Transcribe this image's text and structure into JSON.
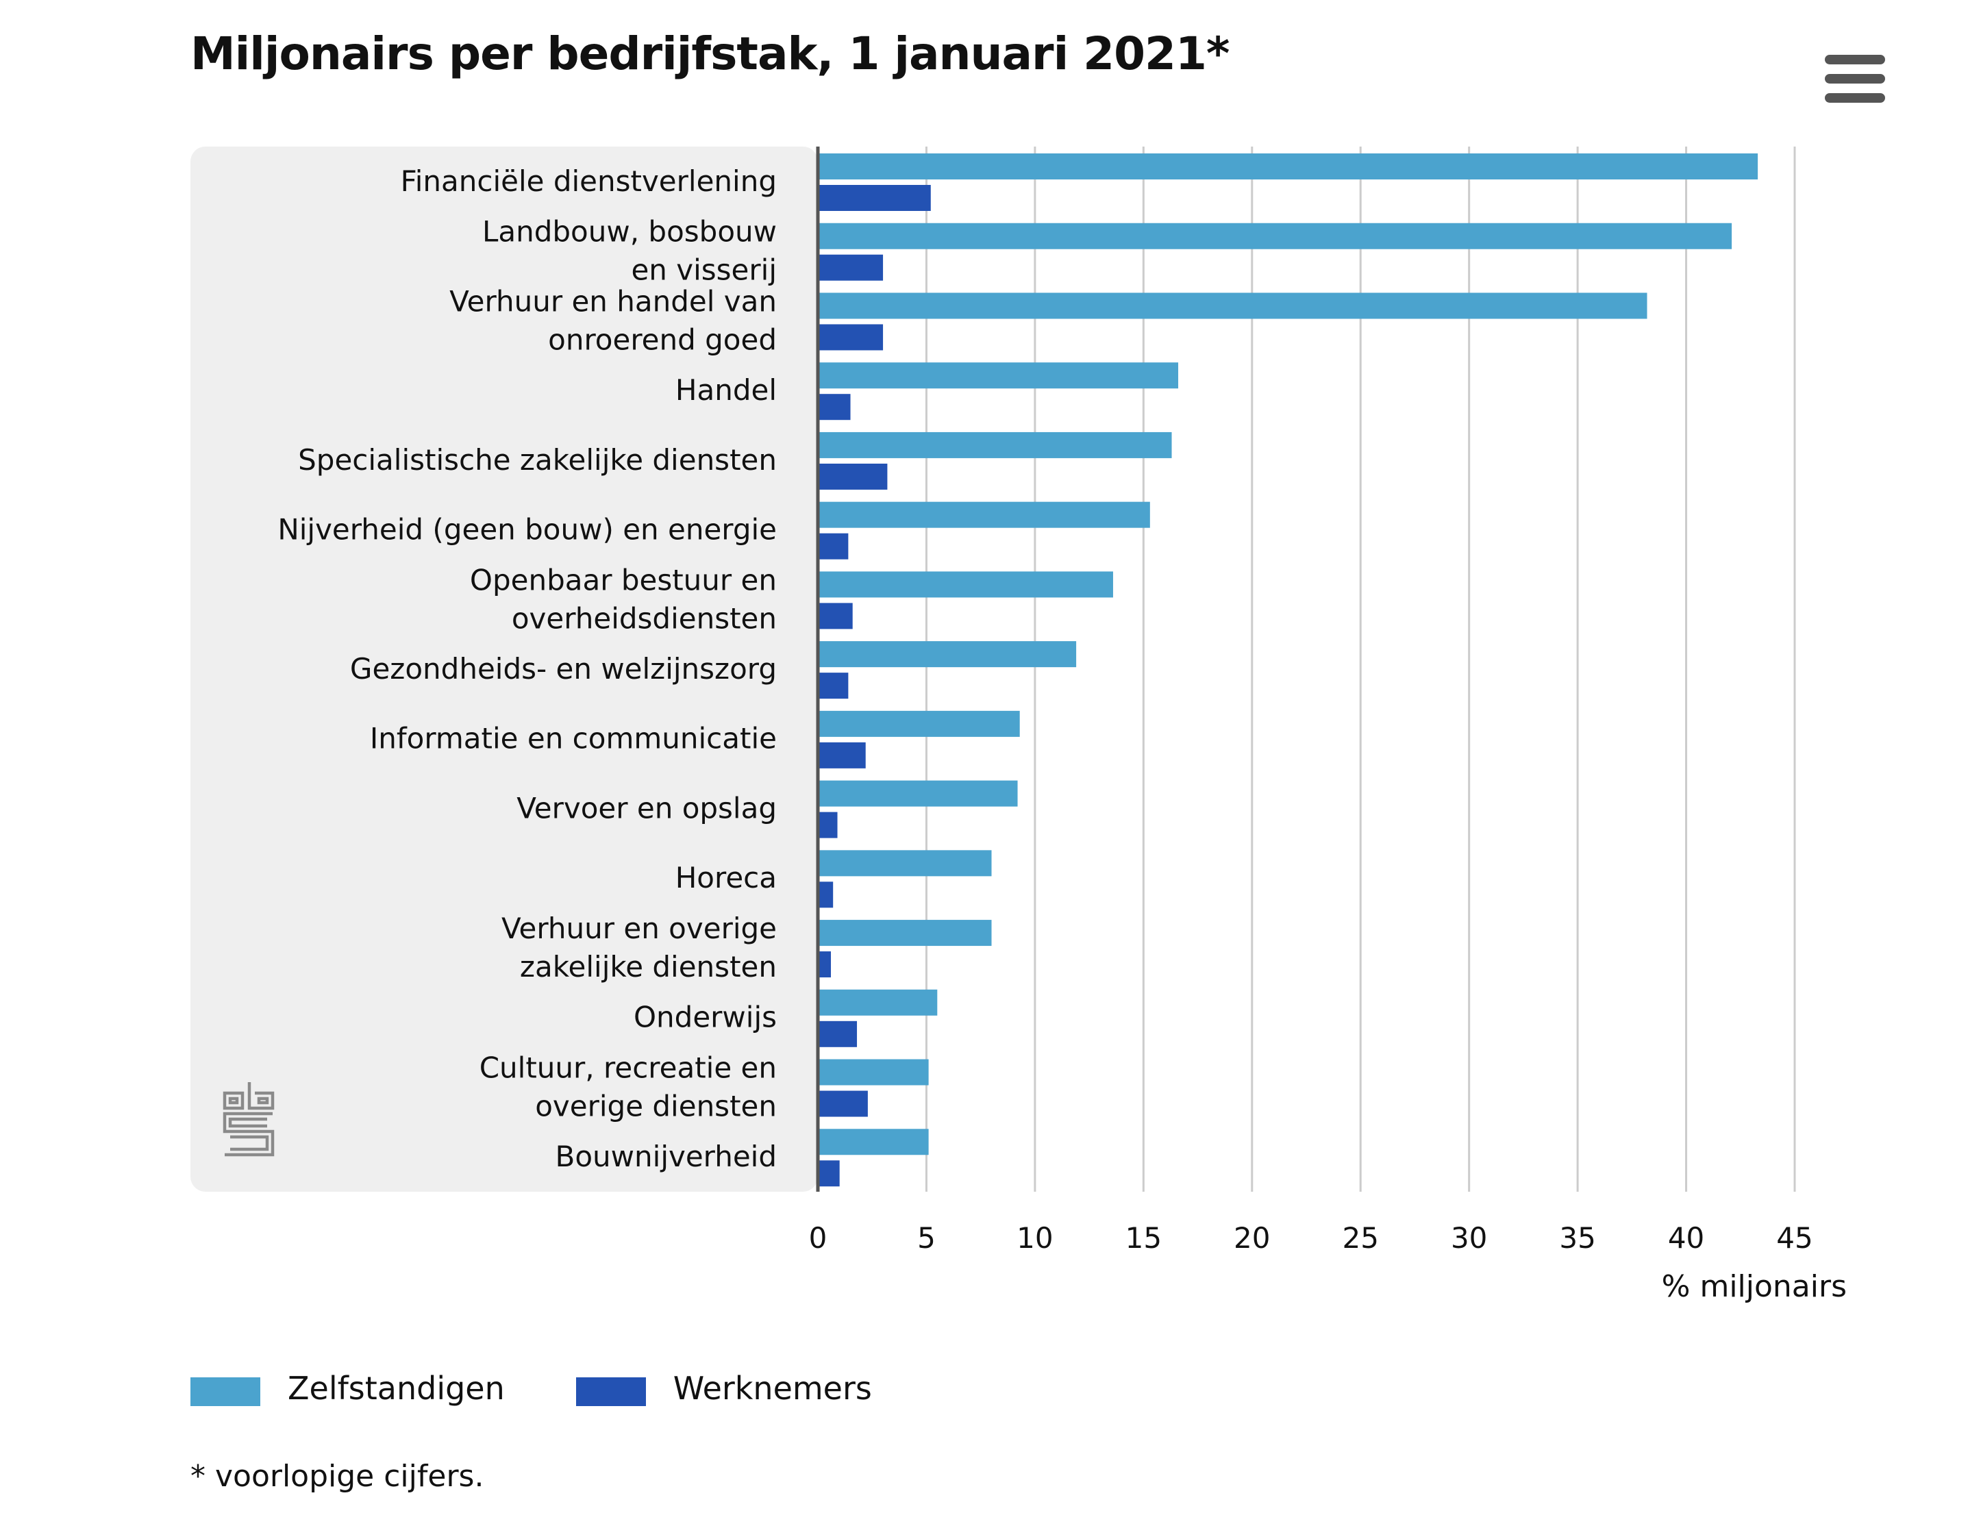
{
  "colors": {
    "zelfstandigen": "#4ba3ce",
    "werknemers": "#2352b3",
    "panel_background": "#efefef",
    "gridline": "#cccccc",
    "axis_line": "#555555",
    "logo": "#8a8a8a"
  },
  "menu": {
    "icon": "hamburger-menu-icon"
  },
  "logo": {
    "icon": "cbs-logo-icon",
    "text": "cbs"
  },
  "footnote": "* voorlopige cijfers.",
  "chart_data": {
    "type": "bar",
    "orientation": "horizontal",
    "title": "Miljonairs per bedrijfstak, 1 januari 2021*",
    "xlabel": "% miljonairs",
    "ylabel": "",
    "xlim": [
      0,
      45
    ],
    "xticks": [
      "0",
      "5",
      "10",
      "15",
      "20",
      "25",
      "30",
      "35",
      "40",
      "45"
    ],
    "grid": true,
    "legend_position": "bottom-left",
    "categories": [
      [
        "Financiële dienstverlening"
      ],
      [
        "Landbouw, bosbouw",
        "en visserij"
      ],
      [
        "Verhuur en handel van",
        "onroerend goed"
      ],
      [
        "Handel"
      ],
      [
        "Specialistische zakelijke diensten"
      ],
      [
        "Nijverheid (geen bouw) en energie"
      ],
      [
        "Openbaar bestuur en",
        "overheidsdiensten"
      ],
      [
        "Gezondheids- en welzijnszorg"
      ],
      [
        "Informatie en communicatie"
      ],
      [
        "Vervoer en opslag"
      ],
      [
        "Horeca"
      ],
      [
        "Verhuur en overige",
        "zakelijke diensten"
      ],
      [
        "Onderwijs"
      ],
      [
        "Cultuur, recreatie en",
        "overige diensten"
      ],
      [
        "Bouwnijverheid"
      ]
    ],
    "series": [
      {
        "name": "Zelfstandigen",
        "values": [
          43.3,
          42.1,
          38.2,
          16.6,
          16.3,
          15.3,
          13.6,
          11.9,
          9.3,
          9.2,
          8.0,
          8.0,
          5.5,
          5.1,
          5.1
        ]
      },
      {
        "name": "Werknemers",
        "values": [
          5.2,
          3.0,
          3.0,
          1.5,
          3.2,
          1.4,
          1.6,
          1.4,
          2.2,
          0.9,
          0.7,
          0.6,
          1.8,
          2.3,
          1.0
        ]
      }
    ]
  }
}
